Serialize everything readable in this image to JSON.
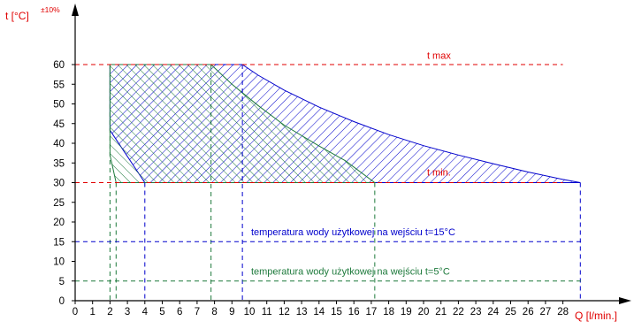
{
  "chart_data": {
    "type": "area",
    "title": "",
    "ylabel": "t [°C]",
    "ylabel_superscript": "±10%",
    "xlabel": "Q [l/min.]",
    "xlim": [
      0,
      29
    ],
    "ylim": [
      0,
      65
    ],
    "x_ticks": [
      0,
      1,
      2,
      3,
      4,
      5,
      6,
      7,
      8,
      9,
      10,
      11,
      12,
      13,
      14,
      15,
      16,
      17,
      18,
      19,
      20,
      21,
      22,
      23,
      24,
      25,
      26,
      27,
      28
    ],
    "y_ticks": [
      0,
      5,
      10,
      15,
      20,
      25,
      30,
      35,
      40,
      45,
      50,
      55,
      60
    ],
    "grid": false,
    "colors": {
      "blue": "#0000cc",
      "green": "#1e7a3c",
      "red": "#e00000",
      "axis": "#000000"
    },
    "regions": [
      {
        "name": "",
        "color": "#0000cc",
        "pattern": "hatch",
        "points": [
          [
            2.0,
            60
          ],
          [
            9.6,
            60
          ],
          [
            10.5,
            57.3
          ],
          [
            12,
            53.5
          ],
          [
            14,
            49.2
          ],
          [
            16,
            45.5
          ],
          [
            18,
            42.2
          ],
          [
            20,
            39.4
          ],
          [
            22,
            37
          ],
          [
            24,
            34.8
          ],
          [
            26,
            32.7
          ],
          [
            28,
            30.8
          ],
          [
            29.0,
            30
          ],
          [
            4.0,
            30
          ],
          [
            2.0,
            43.3
          ]
        ]
      },
      {
        "name": "",
        "color": "#1e7a3c",
        "pattern": "hatch",
        "points": [
          [
            2.0,
            60
          ],
          [
            7.8,
            60
          ],
          [
            9,
            55
          ],
          [
            10.5,
            49.6
          ],
          [
            12,
            44.6
          ],
          [
            14,
            39.3
          ],
          [
            15.5,
            35.6
          ],
          [
            17.2,
            30
          ],
          [
            2.35,
            30
          ],
          [
            2.0,
            37
          ]
        ]
      }
    ],
    "reference_lines": [
      {
        "label": "t max",
        "y": 60,
        "color": "#e00000",
        "x_start": 0,
        "x_end": 28,
        "label_x": 20.2,
        "label_y": 61.5
      },
      {
        "label": "t min.",
        "y": 30,
        "color": "#e00000",
        "x_start": 0,
        "x_end": 28,
        "label_x": 20.2,
        "label_y": 31.8
      },
      {
        "label": "temperatura wody użytkowej na wejściu t=15°C",
        "y": 15,
        "color": "#0000cc",
        "x_start": 0,
        "x_end": 29.2,
        "label_x": 10.1,
        "label_y": 16.6
      },
      {
        "label": "temperatura wody użytkowej na wejściu t=5°C",
        "y": 5,
        "color": "#1e7a3c",
        "x_start": 0,
        "x_end": 29.2,
        "label_x": 10.1,
        "label_y": 6.6
      }
    ],
    "drop_lines": [
      {
        "x": 2.0,
        "y_top": 60,
        "color": "#1e7a3c"
      },
      {
        "x": 2.35,
        "y_top": 30,
        "color": "#1e7a3c"
      },
      {
        "x": 4.0,
        "y_top": 30,
        "color": "#0000cc"
      },
      {
        "x": 7.8,
        "y_top": 60,
        "color": "#1e7a3c"
      },
      {
        "x": 9.6,
        "y_top": 60,
        "color": "#0000cc"
      },
      {
        "x": 17.2,
        "y_top": 30,
        "color": "#1e7a3c"
      },
      {
        "x": 29.0,
        "y_top": 30,
        "color": "#0000cc"
      }
    ]
  }
}
